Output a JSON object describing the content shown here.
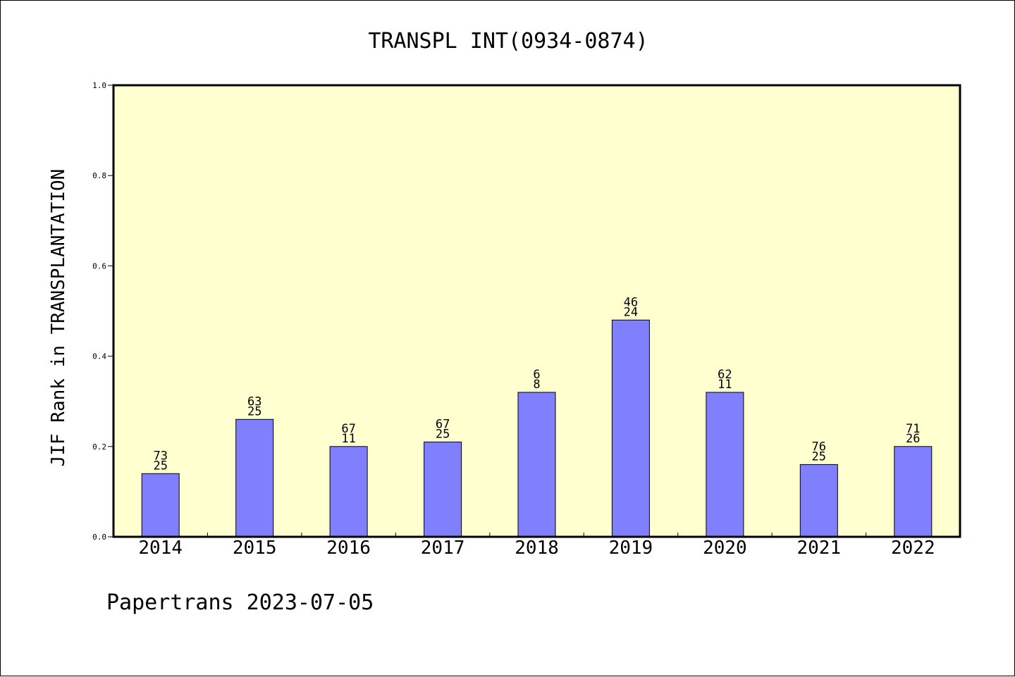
{
  "chart_data": {
    "type": "bar",
    "title": "TRANSPL INT(0934-0874)",
    "ylabel": "JIF Rank in TRANSPLANTATION",
    "xlabel": "",
    "ylim": [
      0,
      1.0
    ],
    "yticks": [
      "0.0",
      "0.2",
      "0.4",
      "0.6",
      "0.8",
      "1.0"
    ],
    "categories": [
      "2014",
      "2015",
      "2016",
      "2017",
      "2018",
      "2019",
      "2020",
      "2021",
      "2022"
    ],
    "values": [
      0.14,
      0.26,
      0.2,
      0.21,
      0.32,
      0.48,
      0.32,
      0.16,
      0.2
    ],
    "labels_top": [
      "73",
      "63",
      "67",
      "67",
      "6",
      "46",
      "62",
      "76",
      "71"
    ],
    "labels_bottom": [
      "25",
      "25",
      "11",
      "25",
      "8",
      "24",
      "11",
      "25",
      "26"
    ],
    "grid": false,
    "colors": {
      "bar": "#8080ff",
      "plot_bg": "#ffffd0",
      "axis": "#000000"
    }
  },
  "footer": "Papertrans 2023-07-05"
}
